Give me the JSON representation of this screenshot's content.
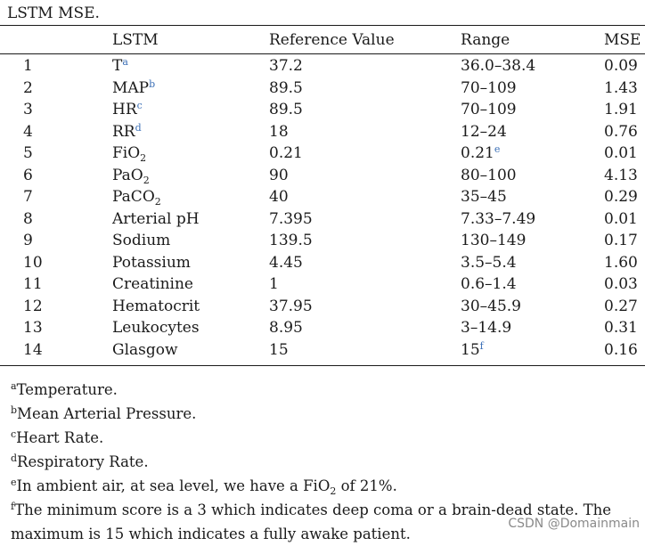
{
  "caption": "LSTM MSE.",
  "headers": {
    "index": "",
    "name": "LSTM",
    "ref": "Reference Value",
    "range": "Range",
    "mse": "MSE"
  },
  "rows": [
    {
      "index": "1",
      "name": "T",
      "name_sup": "a",
      "name_sub": "",
      "ref": "37.2",
      "range": "36.0–38.4",
      "range_sup": "",
      "mse": "0.09"
    },
    {
      "index": "2",
      "name": "MAP",
      "name_sup": "b",
      "name_sub": "",
      "ref": "89.5",
      "range": "70–109",
      "range_sup": "",
      "mse": "1.43"
    },
    {
      "index": "3",
      "name": "HR",
      "name_sup": "c",
      "name_sub": "",
      "ref": "89.5",
      "range": "70–109",
      "range_sup": "",
      "mse": "1.91"
    },
    {
      "index": "4",
      "name": "RR",
      "name_sup": "d",
      "name_sub": "",
      "ref": "18",
      "range": "12–24",
      "range_sup": "",
      "mse": "0.76"
    },
    {
      "index": "5",
      "name": "FiO",
      "name_sup": "",
      "name_sub": "2",
      "ref": "0.21",
      "range": "0.21",
      "range_sup": "e",
      "mse": "0.01"
    },
    {
      "index": "6",
      "name": "PaO",
      "name_sup": "",
      "name_sub": "2",
      "ref": "90",
      "range": "80–100",
      "range_sup": "",
      "mse": "4.13"
    },
    {
      "index": "7",
      "name": "PaCO",
      "name_sup": "",
      "name_sub": "2",
      "ref": "40",
      "range": "35–45",
      "range_sup": "",
      "mse": "0.29"
    },
    {
      "index": "8",
      "name": "Arterial pH",
      "name_sup": "",
      "name_sub": "",
      "ref": "7.395",
      "range": "7.33–7.49",
      "range_sup": "",
      "mse": "0.01"
    },
    {
      "index": "9",
      "name": "Sodium",
      "name_sup": "",
      "name_sub": "",
      "ref": "139.5",
      "range": "130–149",
      "range_sup": "",
      "mse": "0.17"
    },
    {
      "index": "10",
      "name": "Potassium",
      "name_sup": "",
      "name_sub": "",
      "ref": "4.45",
      "range": "3.5–5.4",
      "range_sup": "",
      "mse": "1.60"
    },
    {
      "index": "11",
      "name": "Creatinine",
      "name_sup": "",
      "name_sub": "",
      "ref": "1",
      "range": "0.6–1.4",
      "range_sup": "",
      "mse": "0.03"
    },
    {
      "index": "12",
      "name": "Hematocrit",
      "name_sup": "",
      "name_sub": "",
      "ref": "37.95",
      "range": "30–45.9",
      "range_sup": "",
      "mse": "0.27"
    },
    {
      "index": "13",
      "name": "Leukocytes",
      "name_sup": "",
      "name_sub": "",
      "ref": "8.95",
      "range": "3–14.9",
      "range_sup": "",
      "mse": "0.31"
    },
    {
      "index": "14",
      "name": "Glasgow",
      "name_sup": "",
      "name_sub": "",
      "ref": "15",
      "range": "15",
      "range_sup": "f",
      "mse": "0.16"
    }
  ],
  "footnotes": [
    {
      "mark": "a",
      "text": "Temperature."
    },
    {
      "mark": "b",
      "text": "Mean Arterial Pressure."
    },
    {
      "mark": "c",
      "text": "Heart Rate."
    },
    {
      "mark": "d",
      "text": "Respiratory Rate."
    },
    {
      "mark": "e",
      "text_before": "In ambient air, at sea level, we have a FiO",
      "text_sub": "2",
      "text_after": " of 21%."
    },
    {
      "mark": "f",
      "text": "The minimum score is a 3 which indicates deep coma or a brain-dead state. The",
      "text2": "maximum is 15 which indicates a fully awake patient."
    }
  ],
  "watermark": "CSDN @Domainmain"
}
